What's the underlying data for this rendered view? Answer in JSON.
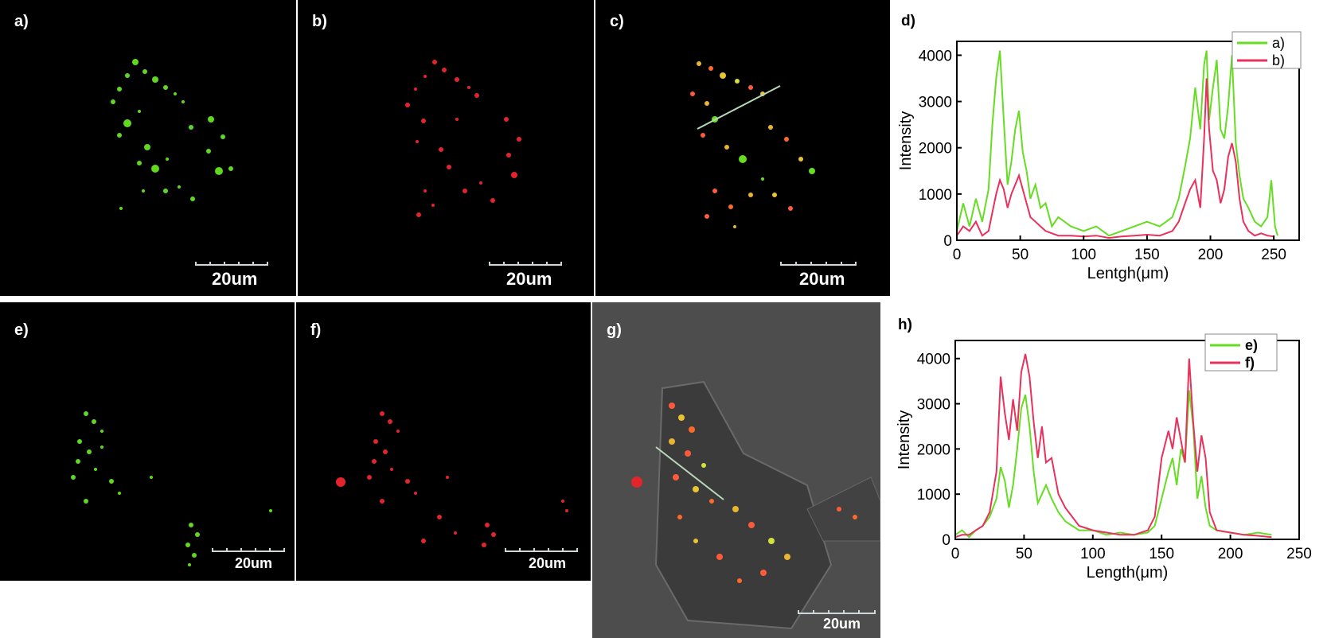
{
  "panels": {
    "a": {
      "label": "a)",
      "scale": "20um"
    },
    "b": {
      "label": "b)",
      "scale": "20um"
    },
    "c": {
      "label": "c)",
      "scale": "20um"
    },
    "e": {
      "label": "e)",
      "scale": "20um"
    },
    "f": {
      "label": "f)",
      "scale": "20um"
    },
    "g": {
      "label": "g)",
      "scale": "20um"
    }
  },
  "colors": {
    "green": "#66dd22",
    "red": "#e8315c",
    "background": "#000000",
    "bright_field": "#4a4a4a"
  },
  "chart_data": [
    {
      "panel_label": "d)",
      "type": "line",
      "xlabel": "Lentgh(μm)",
      "ylabel": "Intensity",
      "xlim": [
        0,
        270
      ],
      "ylim": [
        0,
        4300
      ],
      "xticks": [
        0,
        50,
        100,
        150,
        200,
        250
      ],
      "yticks": [
        0,
        1000,
        2000,
        3000,
        4000
      ],
      "legend_position": "top-right",
      "series": [
        {
          "name": "a)",
          "color": "#66dd22",
          "x": [
            0,
            5,
            10,
            15,
            20,
            25,
            28,
            31,
            34,
            37,
            40,
            43,
            46,
            49,
            52,
            55,
            58,
            62,
            66,
            70,
            75,
            80,
            90,
            100,
            110,
            120,
            130,
            140,
            150,
            160,
            170,
            175,
            180,
            184,
            188,
            192,
            195,
            197,
            199,
            202,
            205,
            208,
            211,
            214,
            217,
            220,
            223,
            226,
            230,
            235,
            240,
            245,
            248,
            251,
            253
          ],
          "y": [
            200,
            800,
            300,
            900,
            400,
            1100,
            2500,
            3500,
            4100,
            2600,
            1200,
            1700,
            2400,
            2800,
            1900,
            1500,
            900,
            1200,
            700,
            800,
            300,
            500,
            300,
            200,
            300,
            100,
            200,
            300,
            400,
            300,
            500,
            900,
            1600,
            2200,
            3300,
            2400,
            3800,
            4100,
            2600,
            3300,
            3900,
            2400,
            2200,
            2900,
            4000,
            2100,
            1400,
            900,
            700,
            400,
            300,
            500,
            1300,
            300,
            100
          ]
        },
        {
          "name": "b)",
          "color": "#e8315c",
          "x": [
            0,
            5,
            10,
            15,
            20,
            25,
            28,
            31,
            34,
            37,
            40,
            43,
            46,
            49,
            52,
            55,
            58,
            62,
            66,
            70,
            75,
            80,
            90,
            100,
            110,
            120,
            130,
            140,
            150,
            160,
            170,
            175,
            180,
            184,
            188,
            192,
            195,
            197,
            199,
            202,
            205,
            208,
            211,
            214,
            217,
            220,
            223,
            226,
            230,
            235,
            240,
            245,
            250
          ],
          "y": [
            100,
            300,
            200,
            400,
            100,
            200,
            600,
            1000,
            1300,
            1100,
            700,
            1000,
            1200,
            1400,
            1100,
            800,
            500,
            400,
            300,
            200,
            150,
            100,
            100,
            80,
            100,
            50,
            80,
            100,
            120,
            100,
            200,
            400,
            800,
            1100,
            1300,
            700,
            2200,
            3500,
            2400,
            1500,
            1300,
            800,
            1100,
            1800,
            2100,
            1700,
            900,
            400,
            200,
            100,
            150,
            100,
            80
          ]
        }
      ]
    },
    {
      "panel_label": "h)",
      "type": "line",
      "xlabel": "Length(μm)",
      "ylabel": "Intensity",
      "xlim": [
        0,
        250
      ],
      "ylim": [
        0,
        4400
      ],
      "xticks": [
        0,
        50,
        100,
        150,
        200,
        250
      ],
      "yticks": [
        0,
        1000,
        2000,
        3000,
        4000
      ],
      "legend_position": "top-right",
      "series": [
        {
          "name": "e)",
          "color": "#66dd22",
          "x": [
            0,
            5,
            10,
            15,
            20,
            25,
            30,
            33,
            36,
            39,
            42,
            45,
            48,
            51,
            54,
            57,
            60,
            63,
            66,
            70,
            75,
            80,
            85,
            90,
            100,
            110,
            120,
            130,
            140,
            145,
            150,
            155,
            158,
            161,
            164,
            167,
            170,
            173,
            176,
            179,
            182,
            185,
            190,
            200,
            210,
            220,
            230
          ],
          "y": [
            100,
            200,
            50,
            200,
            300,
            500,
            900,
            1600,
            1300,
            700,
            1200,
            2000,
            2900,
            3200,
            2500,
            1500,
            800,
            1000,
            1200,
            900,
            600,
            400,
            300,
            200,
            200,
            100,
            150,
            100,
            150,
            300,
            900,
            1500,
            1800,
            1200,
            2000,
            1700,
            3300,
            2500,
            900,
            1400,
            700,
            300,
            200,
            150,
            100,
            150,
            100
          ]
        },
        {
          "name": "f)",
          "color": "#e8315c",
          "x": [
            0,
            5,
            10,
            15,
            20,
            25,
            30,
            33,
            36,
            39,
            42,
            45,
            48,
            51,
            54,
            57,
            60,
            63,
            66,
            70,
            75,
            80,
            85,
            90,
            100,
            110,
            120,
            130,
            140,
            145,
            150,
            155,
            158,
            161,
            164,
            167,
            170,
            173,
            176,
            179,
            182,
            185,
            190,
            200,
            210,
            220,
            230
          ],
          "y": [
            50,
            100,
            100,
            200,
            300,
            600,
            1500,
            3600,
            2800,
            2200,
            3100,
            2400,
            3700,
            4100,
            3600,
            2600,
            1800,
            2500,
            1700,
            1800,
            1000,
            700,
            500,
            300,
            200,
            150,
            100,
            100,
            200,
            500,
            1800,
            2400,
            2000,
            2700,
            2200,
            1700,
            4000,
            2600,
            1500,
            2300,
            1800,
            600,
            200,
            150,
            100,
            80,
            50
          ]
        }
      ]
    }
  ]
}
